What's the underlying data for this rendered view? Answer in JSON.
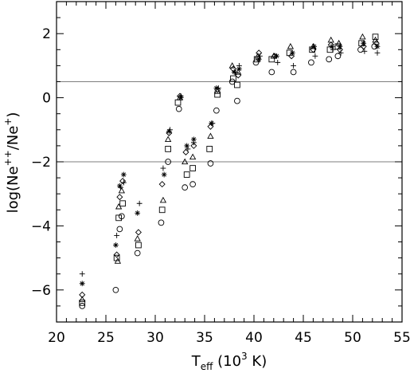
{
  "chart_data": {
    "type": "scatter",
    "title": "",
    "xlabel_main": "T",
    "xlabel_sub": "eff",
    "xlabel_rest": " (10",
    "xlabel_sup": "3",
    "xlabel_end": " K)",
    "ylabel_text": "log(Ne",
    "ylabel_sup1": "++",
    "ylabel_mid": "/Ne",
    "ylabel_sup2": "+",
    "ylabel_end": ")",
    "xlim": [
      20,
      55
    ],
    "ylim": [
      -7,
      3
    ],
    "x_ticks": [
      20,
      25,
      30,
      35,
      40,
      45,
      50,
      55
    ],
    "x_tick_labels": [
      "20",
      "25",
      "30",
      "35",
      "40",
      "45",
      "50",
      "55"
    ],
    "y_ticks": [
      2,
      0,
      -2,
      -4,
      -6
    ],
    "y_tick_labels": [
      "2",
      "0",
      "−2",
      "−4",
      "−6"
    ],
    "hlines": [
      0.5,
      -2.0
    ],
    "series": [
      {
        "marker": "circle",
        "points": [
          [
            22.6,
            -6.5
          ],
          [
            26.0,
            -6.0
          ],
          [
            26.4,
            -4.1
          ],
          [
            26.6,
            -3.7
          ],
          [
            28.2,
            -4.85
          ],
          [
            30.6,
            -3.9
          ],
          [
            31.3,
            -2.0
          ],
          [
            32.4,
            -0.35
          ],
          [
            33.0,
            -2.8
          ],
          [
            33.8,
            -2.7
          ],
          [
            35.6,
            -2.05
          ],
          [
            36.2,
            -0.4
          ],
          [
            37.8,
            0.5
          ],
          [
            38.3,
            -0.1
          ],
          [
            40.2,
            1.1
          ],
          [
            41.8,
            0.8
          ],
          [
            44.0,
            0.8
          ],
          [
            45.8,
            1.1
          ],
          [
            47.6,
            1.2
          ],
          [
            48.5,
            1.3
          ],
          [
            50.8,
            1.5
          ],
          [
            52.2,
            1.6
          ]
        ]
      },
      {
        "marker": "square",
        "points": [
          [
            22.6,
            -6.4
          ],
          [
            26.1,
            -5.0
          ],
          [
            26.3,
            -3.75
          ],
          [
            26.7,
            -3.3
          ],
          [
            28.3,
            -4.6
          ],
          [
            30.7,
            -3.5
          ],
          [
            31.3,
            -1.6
          ],
          [
            32.3,
            -0.15
          ],
          [
            33.2,
            -2.4
          ],
          [
            33.8,
            -2.2
          ],
          [
            35.5,
            -1.6
          ],
          [
            36.3,
            0.1
          ],
          [
            37.9,
            0.6
          ],
          [
            38.3,
            0.4
          ],
          [
            40.3,
            1.2
          ],
          [
            41.8,
            1.2
          ],
          [
            43.6,
            1.4
          ],
          [
            45.9,
            1.5
          ],
          [
            47.7,
            1.5
          ],
          [
            48.5,
            1.6
          ],
          [
            50.9,
            1.7
          ],
          [
            52.3,
            1.9
          ]
        ]
      },
      {
        "marker": "triangle",
        "points": [
          [
            22.6,
            -6.3
          ],
          [
            26.2,
            -5.1
          ],
          [
            26.3,
            -3.4
          ],
          [
            26.6,
            -2.9
          ],
          [
            28.2,
            -4.4
          ],
          [
            30.8,
            -3.2
          ],
          [
            31.3,
            -1.3
          ],
          [
            32.5,
            0.0
          ],
          [
            33.0,
            -2.0
          ],
          [
            33.8,
            -1.85
          ],
          [
            35.6,
            -1.2
          ],
          [
            36.3,
            0.2
          ],
          [
            37.8,
            1.0
          ],
          [
            38.4,
            0.8
          ],
          [
            40.4,
            1.3
          ],
          [
            42.0,
            1.3
          ],
          [
            43.7,
            1.6
          ],
          [
            46.0,
            1.6
          ],
          [
            47.8,
            1.8
          ],
          [
            48.6,
            1.7
          ],
          [
            51.0,
            1.9
          ],
          [
            52.3,
            1.8
          ]
        ]
      },
      {
        "marker": "diamond",
        "points": [
          [
            22.6,
            -6.15
          ],
          [
            26.1,
            -4.9
          ],
          [
            26.4,
            -3.1
          ],
          [
            26.7,
            -2.6
          ],
          [
            28.3,
            -4.2
          ],
          [
            30.7,
            -2.7
          ],
          [
            31.4,
            -1.1
          ],
          [
            32.5,
            0.05
          ],
          [
            33.1,
            -1.7
          ],
          [
            33.9,
            -1.5
          ],
          [
            35.6,
            -0.9
          ],
          [
            36.3,
            0.25
          ],
          [
            37.9,
            0.9
          ],
          [
            38.4,
            0.7
          ],
          [
            40.5,
            1.4
          ],
          [
            42.1,
            1.3
          ],
          [
            43.8,
            1.3
          ],
          [
            46.0,
            1.5
          ],
          [
            47.8,
            1.65
          ],
          [
            48.7,
            1.5
          ],
          [
            51.1,
            1.6
          ],
          [
            52.4,
            1.7
          ]
        ]
      },
      {
        "marker": "asterisk",
        "points": [
          [
            22.6,
            -5.8
          ],
          [
            26.0,
            -4.6
          ],
          [
            26.4,
            -2.75
          ],
          [
            26.8,
            -2.4
          ],
          [
            28.2,
            -3.6
          ],
          [
            30.9,
            -2.4
          ],
          [
            31.4,
            -1.05
          ],
          [
            32.6,
            0.0
          ],
          [
            33.2,
            -1.5
          ],
          [
            33.9,
            -1.3
          ],
          [
            35.7,
            -0.8
          ],
          [
            36.2,
            0.3
          ],
          [
            38.0,
            0.8
          ],
          [
            38.5,
            0.9
          ],
          [
            40.5,
            1.2
          ],
          [
            42.3,
            1.3
          ],
          [
            43.9,
            1.4
          ],
          [
            46.1,
            1.6
          ],
          [
            47.9,
            1.6
          ],
          [
            48.7,
            1.6
          ],
          [
            51.1,
            1.7
          ],
          [
            52.5,
            1.6
          ]
        ]
      },
      {
        "marker": "plus",
        "points": [
          [
            22.6,
            -5.5
          ],
          [
            26.1,
            -4.3
          ],
          [
            26.5,
            -2.8
          ],
          [
            26.8,
            -2.65
          ],
          [
            28.4,
            -3.3
          ],
          [
            30.8,
            -2.2
          ],
          [
            31.5,
            -1.0
          ],
          [
            32.6,
            0.05
          ],
          [
            33.3,
            -1.6
          ],
          [
            33.9,
            -1.4
          ],
          [
            35.8,
            -0.8
          ],
          [
            36.4,
            0.3
          ],
          [
            38.1,
            0.8
          ],
          [
            38.5,
            1.0
          ],
          [
            40.6,
            1.3
          ],
          [
            42.4,
            1.1
          ],
          [
            44.0,
            1.0
          ],
          [
            46.2,
            1.3
          ],
          [
            48.0,
            1.5
          ],
          [
            48.8,
            1.4
          ],
          [
            51.2,
            1.45
          ],
          [
            52.5,
            1.4
          ]
        ]
      }
    ]
  }
}
